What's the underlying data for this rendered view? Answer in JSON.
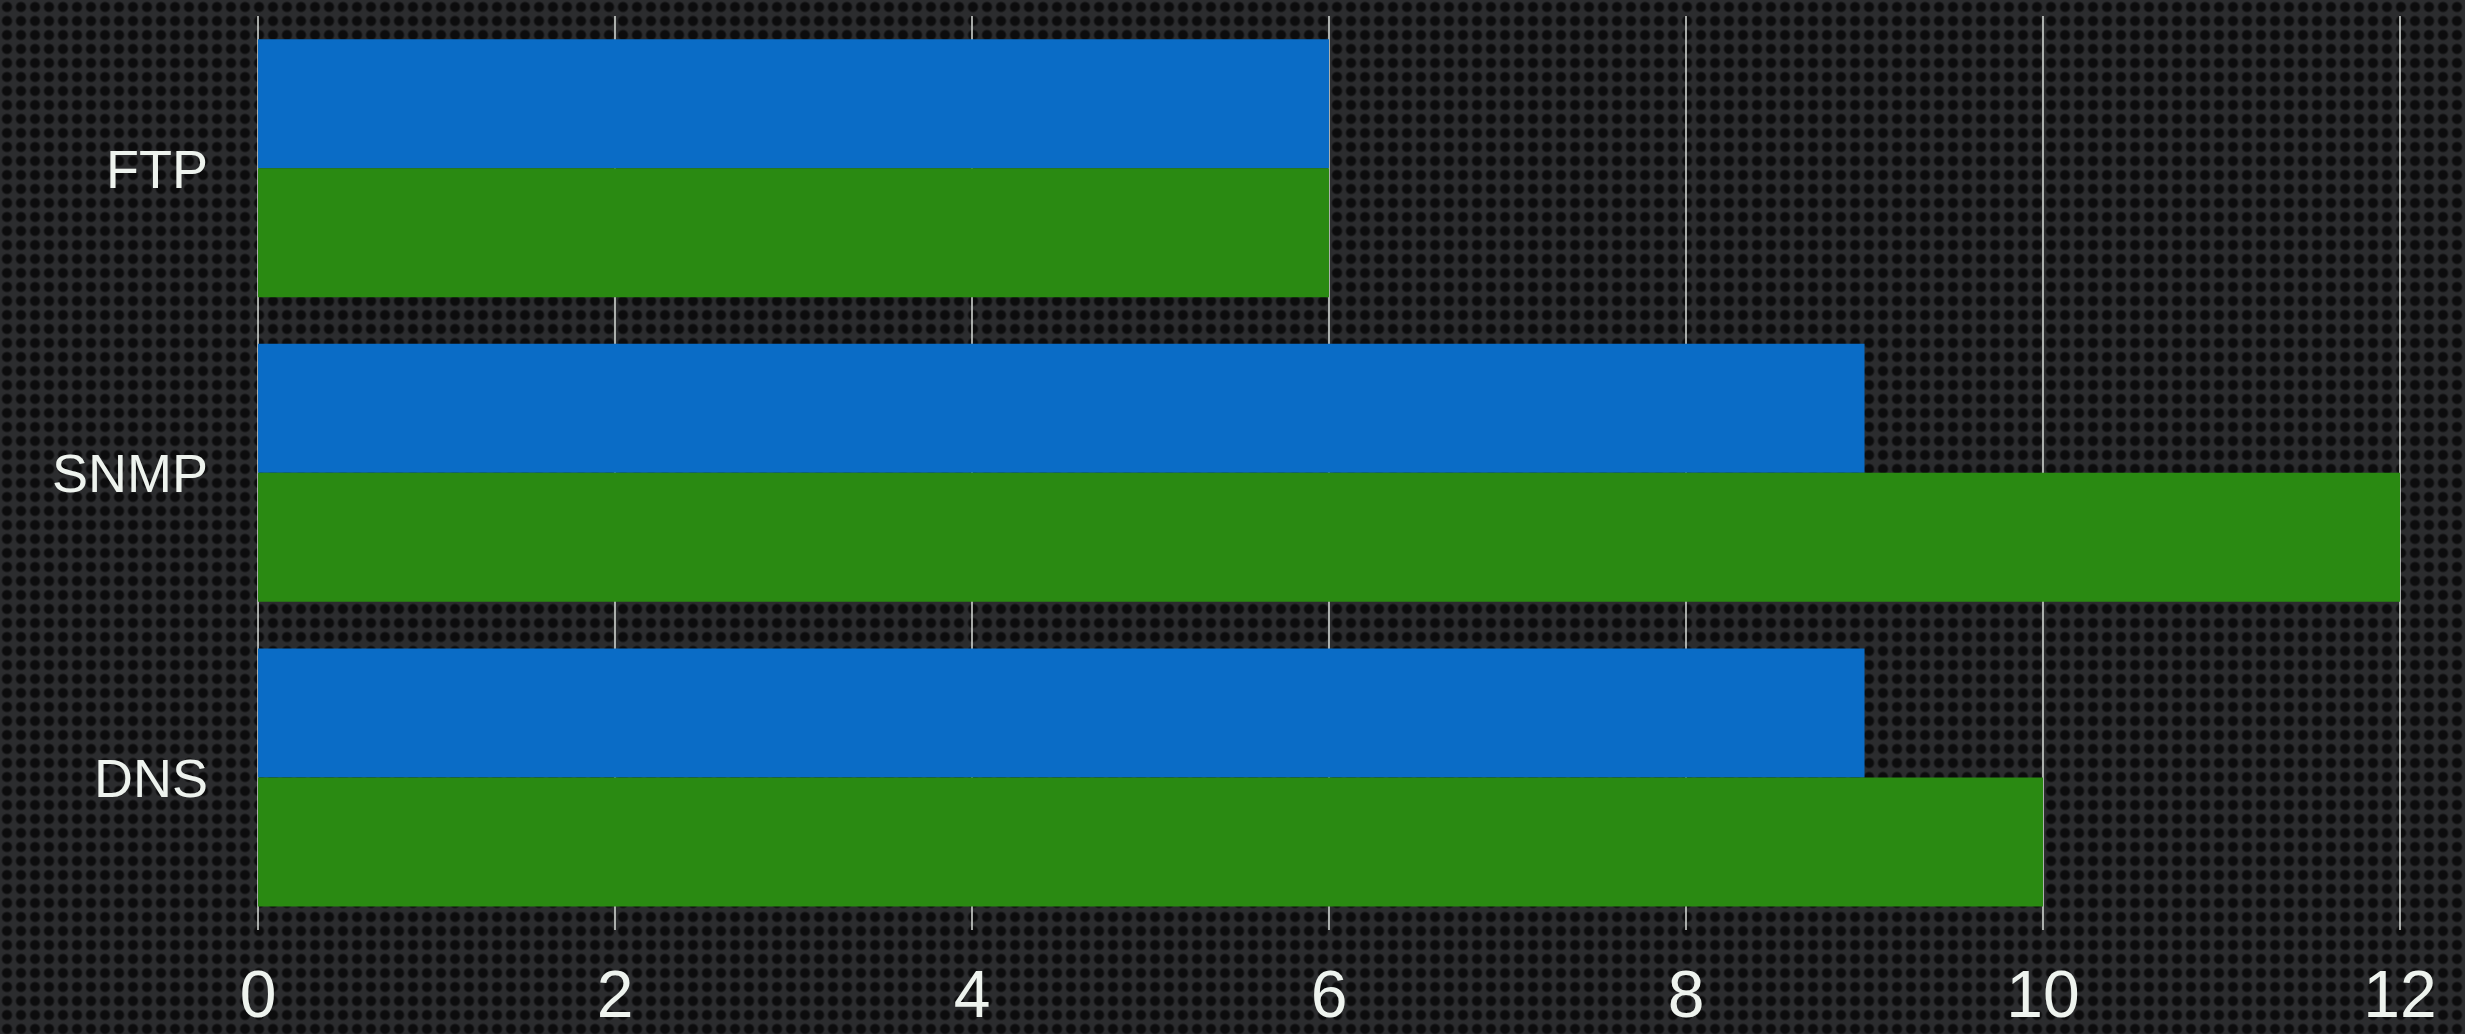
{
  "chart_data": {
    "type": "bar",
    "orientation": "horizontal",
    "categories": [
      "FTP",
      "SNMP",
      "DNS"
    ],
    "series": [
      {
        "color": "#0a6cc6",
        "values": [
          6,
          9,
          9
        ]
      },
      {
        "color": "#2a8a12",
        "values": [
          6,
          12,
          10
        ]
      }
    ],
    "xlim": [
      0,
      12
    ],
    "xticks": [
      0,
      2,
      4,
      6,
      8,
      10,
      12
    ],
    "grid": "x"
  }
}
